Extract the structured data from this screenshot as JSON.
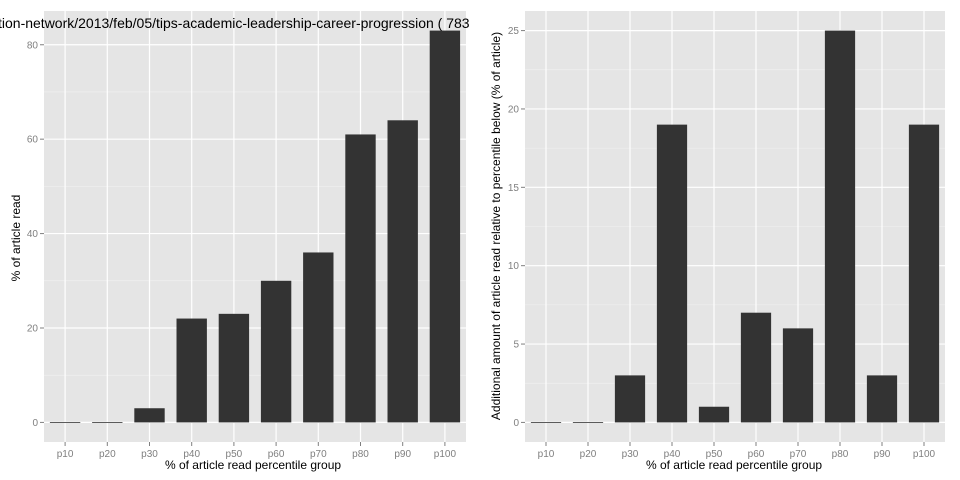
{
  "chart_data": [
    {
      "type": "bar",
      "title": "tion-network/2013/feb/05/tips-academic-leadership-career-progression ( 783",
      "xlabel": "% of article read percentile group",
      "ylabel": "% of article read",
      "categories": [
        "p10",
        "p20",
        "p30",
        "p40",
        "p50",
        "p60",
        "p70",
        "p80",
        "p90",
        "p100"
      ],
      "values": [
        0,
        0,
        3,
        22,
        23,
        30,
        36,
        61,
        64,
        83
      ],
      "ylim": [
        -4.15,
        87.15
      ],
      "yticks": [
        0,
        20,
        40,
        60,
        80
      ],
      "grid": true
    },
    {
      "type": "bar",
      "title": "",
      "xlabel": "% of article read percentile group",
      "ylabel": "Additional amount of article read relative to percentile below (% of article)",
      "categories": [
        "p10",
        "p20",
        "p30",
        "p40",
        "p50",
        "p60",
        "p70",
        "p80",
        "p90",
        "p100"
      ],
      "values": [
        0,
        0,
        3,
        19,
        1,
        7,
        6,
        25,
        3,
        19
      ],
      "ylim": [
        -1.25,
        26.25
      ],
      "yticks": [
        0,
        5,
        10,
        15,
        20,
        25
      ],
      "grid": true
    }
  ]
}
